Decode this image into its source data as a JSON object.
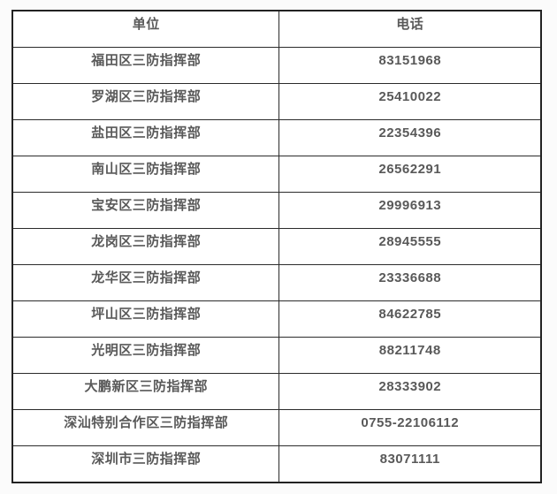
{
  "table": {
    "columns": [
      {
        "key": "unit",
        "label": "单位"
      },
      {
        "key": "phone",
        "label": "电话"
      }
    ],
    "rows": [
      {
        "unit": "福田区三防指挥部",
        "phone": "83151968"
      },
      {
        "unit": "罗湖区三防指挥部",
        "phone": "25410022"
      },
      {
        "unit": "盐田区三防指挥部",
        "phone": "22354396"
      },
      {
        "unit": "南山区三防指挥部",
        "phone": "26562291"
      },
      {
        "unit": "宝安区三防指挥部",
        "phone": "29996913"
      },
      {
        "unit": "龙岗区三防指挥部",
        "phone": "28945555"
      },
      {
        "unit": "龙华区三防指挥部",
        "phone": "23336688"
      },
      {
        "unit": "坪山区三防指挥部",
        "phone": "84622785"
      },
      {
        "unit": "光明区三防指挥部",
        "phone": "88211748"
      },
      {
        "unit": "大鹏新区三防指挥部",
        "phone": "28333902"
      },
      {
        "unit": "深汕特别合作区三防指挥部",
        "phone": "0755-22106112"
      },
      {
        "unit": "深圳市三防指挥部",
        "phone": "83071111"
      }
    ],
    "colors": {
      "page_bg": "#fbfbfb",
      "cell_bg": "#ffffff",
      "border": "#2b2b2b",
      "text": "#595959"
    }
  }
}
